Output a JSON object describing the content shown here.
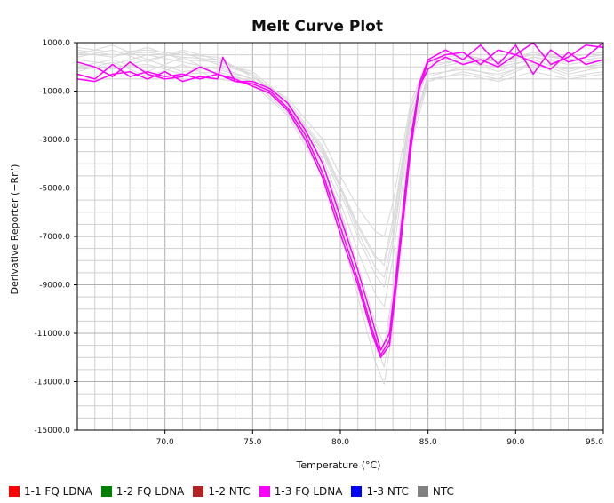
{
  "chart_data": {
    "type": "line",
    "title": "Melt Curve Plot",
    "xlabel": "Temperature (°C)",
    "ylabel": "Derivative Reporter (−Rn')",
    "xlim": [
      65.0,
      95.0
    ],
    "ylim": [
      -15000.0,
      1000.0
    ],
    "x_ticks": [
      "70.0",
      "75.0",
      "80.0",
      "85.0",
      "90.0",
      "95.0"
    ],
    "y_ticks": [
      "1000.0",
      "-1000.0",
      "-3000.0",
      "-5000.0",
      "-7000.0",
      "-9000.0",
      "-11000.0",
      "-13000.0",
      "-15000.0"
    ],
    "grid": true,
    "legend_position": "bottom",
    "legend": [
      {
        "label": "1-1 FQ LDNA",
        "color": "#ff0000"
      },
      {
        "label": "1-2 FQ LDNA",
        "color": "#008000"
      },
      {
        "label": "1-2 NTC",
        "color": "#b22222"
      },
      {
        "label": "1-3 FQ LDNA",
        "color": "#ff00ff"
      },
      {
        "label": "1-3 NTC",
        "color": "#0000ff"
      },
      {
        "label": "NTC",
        "color": "#808080"
      }
    ],
    "series": [
      {
        "color": "#ff00ff",
        "x": [
          65.0,
          66.0,
          67.0,
          68.0,
          69.0,
          70.0,
          71.0,
          72.0,
          73.0,
          73.3,
          74.0,
          75.0,
          76.0,
          77.0,
          78.0,
          79.0,
          80.0,
          81.0,
          81.8,
          82.3,
          82.8,
          83.2,
          84.0,
          84.5,
          85.0,
          85.5,
          86.0,
          87.0,
          88.0,
          89.0,
          90.0,
          91.0,
          92.0,
          93.0,
          94.0,
          95.0
        ],
        "y": [
          -500,
          -600,
          -300,
          -200,
          -500,
          -200,
          -600,
          -400,
          -500,
          400,
          -600,
          -600,
          -900,
          -1500,
          -2600,
          -4000,
          -6200,
          -8400,
          -10400,
          -11700,
          -11000,
          -8500,
          -3000,
          -800,
          -100,
          200,
          400,
          100,
          300,
          0,
          500,
          200,
          -100,
          600,
          100,
          300
        ]
      },
      {
        "color": "#ff00ff",
        "x": [
          65.0,
          66.0,
          67.0,
          68.0,
          69.0,
          70.0,
          71.0,
          72.0,
          73.0,
          74.0,
          75.0,
          76.0,
          77.0,
          78.0,
          79.0,
          80.0,
          81.0,
          81.8,
          82.3,
          82.8,
          83.2,
          84.0,
          84.5,
          85.0,
          86.0,
          87.0,
          88.0,
          89.0,
          90.0,
          91.0,
          92.0,
          93.0,
          94.0,
          95.0
        ],
        "y": [
          200,
          0,
          -400,
          200,
          -300,
          -500,
          -400,
          0,
          -300,
          -500,
          -800,
          -1100,
          -1800,
          -3000,
          -4600,
          -6900,
          -9000,
          -11000,
          -12000,
          -11500,
          -9000,
          -3500,
          -900,
          200,
          500,
          600,
          100,
          700,
          500,
          1000,
          100,
          400,
          900,
          800
        ]
      },
      {
        "color": "#ff00ff",
        "x": [
          65.0,
          66.0,
          67.0,
          68.0,
          69.0,
          70.0,
          71.0,
          72.0,
          73.0,
          74.0,
          75.0,
          76.0,
          77.0,
          78.0,
          79.0,
          80.0,
          81.0,
          81.8,
          82.3,
          82.8,
          83.2,
          84.0,
          84.5,
          85.0,
          86.0,
          87.0,
          88.0,
          89.0,
          90.0,
          91.0,
          92.0,
          93.0,
          94.0,
          95.0
        ],
        "y": [
          -300,
          -500,
          100,
          -400,
          -200,
          -400,
          -300,
          -500,
          -300,
          -600,
          -700,
          -1000,
          -1700,
          -2800,
          -4400,
          -6600,
          -8800,
          -10800,
          -11900,
          -11300,
          -8700,
          -3200,
          -700,
          300,
          700,
          300,
          900,
          100,
          900,
          -300,
          700,
          200,
          400,
          1000
        ]
      },
      {
        "color": "#d8d8d8",
        "x": [
          65.0,
          67.0,
          69.0,
          71.0,
          73.0,
          75.0,
          77.0,
          79.0,
          80.0,
          81.0,
          82.0,
          82.5,
          83.0,
          84.0,
          85.0,
          87.0,
          89.0,
          91.0,
          93.0,
          95.0
        ],
        "y": [
          800,
          600,
          700,
          500,
          400,
          -400,
          -1300,
          -3000,
          -4500,
          -5800,
          -6800,
          -7000,
          -5600,
          -1500,
          300,
          500,
          200,
          600,
          300,
          500
        ]
      },
      {
        "color": "#d8d8d8",
        "x": [
          65.0,
          67.0,
          69.0,
          71.0,
          73.0,
          75.0,
          77.0,
          79.0,
          80.0,
          81.0,
          82.0,
          82.5,
          83.0,
          84.0,
          85.0,
          87.0,
          89.0,
          91.0,
          93.0,
          95.0
        ],
        "y": [
          500,
          900,
          300,
          600,
          100,
          -300,
          -1600,
          -3800,
          -5600,
          -7600,
          -9400,
          -9900,
          -7900,
          -2400,
          100,
          300,
          -200,
          400,
          100,
          300
        ]
      },
      {
        "color": "#d8d8d8",
        "x": [
          65.0,
          67.0,
          69.0,
          71.0,
          73.0,
          75.0,
          77.0,
          79.0,
          80.0,
          81.0,
          82.0,
          82.5,
          83.0,
          84.0,
          85.0,
          87.0,
          89.0,
          91.0,
          93.0,
          95.0
        ],
        "y": [
          300,
          100,
          500,
          200,
          -100,
          -500,
          -1700,
          -3600,
          -5200,
          -7000,
          -8600,
          -9100,
          -7300,
          -2100,
          -100,
          200,
          0,
          300,
          -200,
          200
        ]
      },
      {
        "color": "#d8d8d8",
        "x": [
          65.0,
          67.0,
          69.0,
          71.0,
          73.0,
          75.0,
          77.0,
          79.0,
          80.0,
          81.0,
          82.0,
          82.5,
          83.0,
          84.0,
          85.0,
          87.0,
          89.0,
          91.0,
          93.0,
          95.0
        ],
        "y": [
          600,
          400,
          800,
          300,
          200,
          -200,
          -1400,
          -3300,
          -4900,
          -6500,
          -7800,
          -8200,
          -6600,
          -1800,
          200,
          400,
          300,
          500,
          400,
          600
        ]
      },
      {
        "color": "#d8d8d8",
        "x": [
          65.0,
          67.0,
          69.0,
          71.0,
          73.0,
          75.0,
          77.0,
          79.0,
          80.0,
          81.0,
          82.0,
          82.5,
          83.0,
          84.0,
          85.0,
          87.0,
          89.0,
          91.0,
          93.0,
          95.0
        ],
        "y": [
          0,
          300,
          -200,
          400,
          -300,
          -600,
          -1900,
          -4300,
          -6300,
          -8800,
          -11400,
          -12400,
          -10000,
          -3000,
          -400,
          0,
          -400,
          200,
          -300,
          0
        ]
      },
      {
        "color": "#d8d8d8",
        "x": [
          65.0,
          67.0,
          69.0,
          71.0,
          73.0,
          75.0,
          77.0,
          79.0,
          80.0,
          81.0,
          82.0,
          82.5,
          83.0,
          84.0,
          85.0,
          87.0,
          89.0,
          91.0,
          93.0,
          95.0
        ],
        "y": [
          -200,
          200,
          -400,
          100,
          -500,
          -700,
          -2000,
          -4500,
          -6700,
          -9500,
          -12200,
          -13100,
          -10800,
          -3300,
          -600,
          -200,
          -500,
          100,
          -400,
          -200
        ]
      },
      {
        "color": "#d8d8d8",
        "x": [
          65.0,
          67.0,
          69.0,
          71.0,
          73.0,
          75.0,
          77.0,
          79.0,
          80.0,
          81.0,
          82.0,
          82.5,
          83.0,
          84.0,
          85.0,
          87.0,
          89.0,
          91.0,
          93.0,
          95.0
        ],
        "y": [
          400,
          700,
          200,
          700,
          300,
          -300,
          -1500,
          -3500,
          -5000,
          -6800,
          -8300,
          -8700,
          -7000,
          -2000,
          0,
          300,
          100,
          400,
          200,
          400
        ]
      },
      {
        "color": "#d8d8d8",
        "x": [
          65.0,
          67.0,
          69.0,
          71.0,
          73.0,
          75.0,
          77.0,
          79.0,
          80.0,
          81.0,
          82.0,
          82.5,
          83.0,
          84.0,
          85.0,
          87.0,
          89.0,
          91.0,
          93.0,
          95.0
        ],
        "y": [
          100,
          -100,
          300,
          -200,
          0,
          -500,
          -1800,
          -4000,
          -5900,
          -8200,
          -10600,
          -11500,
          -9300,
          -2800,
          -300,
          -100,
          -300,
          100,
          -100,
          100
        ]
      },
      {
        "color": "#d8d8d8",
        "x": [
          65.0,
          67.0,
          69.0,
          71.0,
          73.0,
          75.0,
          77.0,
          79.0,
          80.0,
          81.0,
          82.0,
          82.5,
          83.0,
          84.0,
          85.0,
          87.0,
          89.0,
          91.0,
          93.0,
          95.0
        ],
        "y": [
          -100,
          0,
          100,
          -300,
          -200,
          -600,
          -1900,
          -4100,
          -6000,
          -8400,
          -10900,
          -11900,
          -9600,
          -2900,
          -500,
          -300,
          -600,
          -200,
          -500,
          -300
        ]
      },
      {
        "color": "#d8d8d8",
        "x": [
          65.0,
          67.0,
          69.0,
          71.0,
          73.0,
          75.0,
          77.0,
          79.0,
          80.0,
          81.0,
          82.0,
          82.5,
          83.0,
          84.0,
          85.0,
          87.0,
          89.0,
          91.0,
          93.0,
          95.0
        ],
        "y": [
          700,
          500,
          600,
          400,
          300,
          -400,
          -1500,
          -3400,
          -5000,
          -6600,
          -7900,
          -8000,
          -6300,
          -1700,
          200,
          400,
          200,
          500,
          300,
          500
        ]
      }
    ]
  }
}
